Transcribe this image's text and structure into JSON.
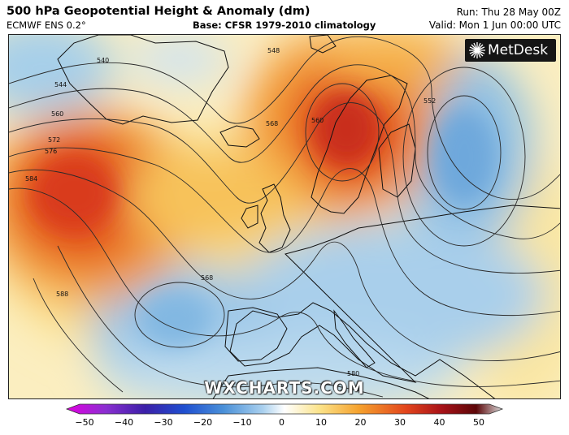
{
  "header": {
    "title": "500 hPa Geopotential Height & Anomaly (dm)",
    "model": "ECMWF ENS 0.2°",
    "base": "Base: CFSR 1979-2010 climatology",
    "run": "Run: Thu 28 May 00Z",
    "valid": "Valid: Mon 1 Jun 00:00 UTC"
  },
  "logo": {
    "text": "MetDesk",
    "icon": "metdesk-burst-icon"
  },
  "watermark": "WXCHARTS.COM",
  "contour_labels": [
    "540",
    "544",
    "548",
    "552",
    "560",
    "568",
    "572",
    "576",
    "584",
    "588",
    "560",
    "568",
    "580"
  ],
  "colorbar": {
    "min": -50,
    "max": 50,
    "ticks": [
      "−50",
      "−40",
      "−30",
      "−20",
      "−10",
      "0",
      "10",
      "20",
      "30",
      "40",
      "50"
    ],
    "colors": [
      "#e100e1",
      "#8a2fd0",
      "#3b1fa8",
      "#1f4fd0",
      "#4a90d8",
      "#a9d0ee",
      "#ffffff",
      "#fbe38a",
      "#f5a22e",
      "#e2441c",
      "#a81218",
      "#5c0608",
      "#dcdcdc"
    ]
  }
}
